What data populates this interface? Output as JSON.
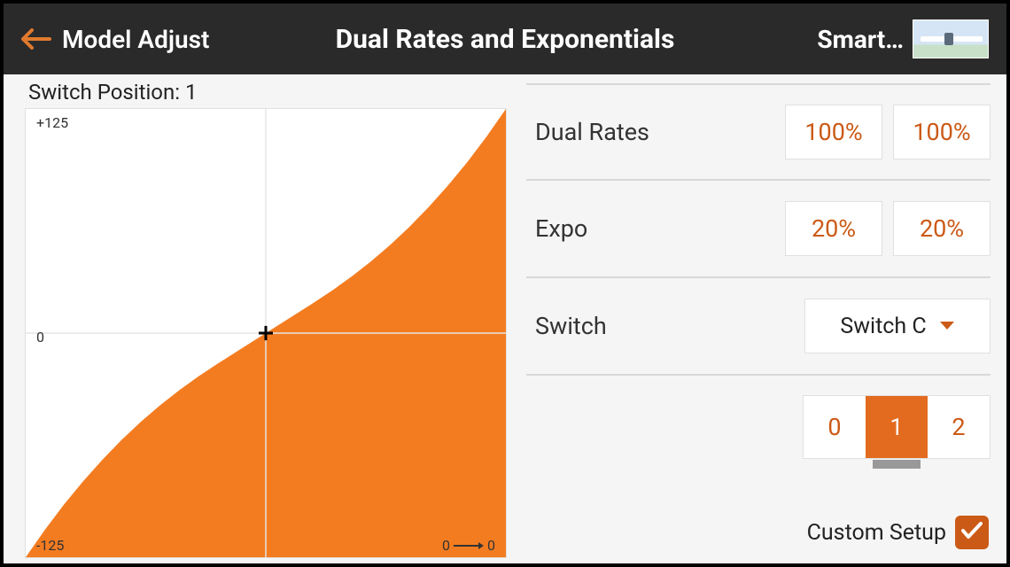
{
  "header": {
    "back_label": "Model Adjust",
    "title": "Dual Rates and Exponentials",
    "model_name": "Smart…"
  },
  "chart": {
    "type": "area",
    "switch_position_label": "Switch Position: 1",
    "y_top_label": "+125",
    "y_mid_label": "0",
    "y_bot_label": "-125",
    "x_right_label_a": "0",
    "x_right_label_b": "0",
    "x_range": [
      -125,
      125
    ],
    "y_range": [
      -125,
      125
    ],
    "expo_percent": 20,
    "rate_percent": 100,
    "fill_color": "#f47c20",
    "grid_color": "#e5e5e5",
    "cross_color": "#000000",
    "background_color": "#ffffff",
    "curve_points": [
      [
        -125,
        -125
      ],
      [
        -115,
        -109.7
      ],
      [
        -105,
        -95.5
      ],
      [
        -95,
        -82.5
      ],
      [
        -85,
        -70.5
      ],
      [
        -75,
        -59.5
      ],
      [
        -65,
        -49.4
      ],
      [
        -55,
        -40.2
      ],
      [
        -45,
        -31.8
      ],
      [
        -35,
        -24.1
      ],
      [
        -25,
        -17.0
      ],
      [
        -15,
        -10.2
      ],
      [
        -5,
        -3.4
      ],
      [
        0,
        0
      ],
      [
        5,
        3.4
      ],
      [
        15,
        10.2
      ],
      [
        25,
        17.0
      ],
      [
        35,
        24.1
      ],
      [
        45,
        31.8
      ],
      [
        55,
        40.2
      ],
      [
        65,
        49.4
      ],
      [
        75,
        59.5
      ],
      [
        85,
        70.5
      ],
      [
        95,
        82.5
      ],
      [
        105,
        95.5
      ],
      [
        115,
        109.7
      ],
      [
        125,
        125
      ]
    ]
  },
  "rows": {
    "dual_rates_label": "Dual Rates",
    "dual_rates_values": [
      "100%",
      "100%"
    ],
    "expo_label": "Expo",
    "expo_values": [
      "20%",
      "20%"
    ],
    "switch_label": "Switch",
    "switch_value": "Switch C",
    "positions": [
      "0",
      "1",
      "2"
    ],
    "active_position_index": 1
  },
  "custom": {
    "label": "Custom Setup",
    "checked": true
  },
  "colors": {
    "accent": "#cb5a17",
    "header_bg": "#2a2a2a"
  }
}
